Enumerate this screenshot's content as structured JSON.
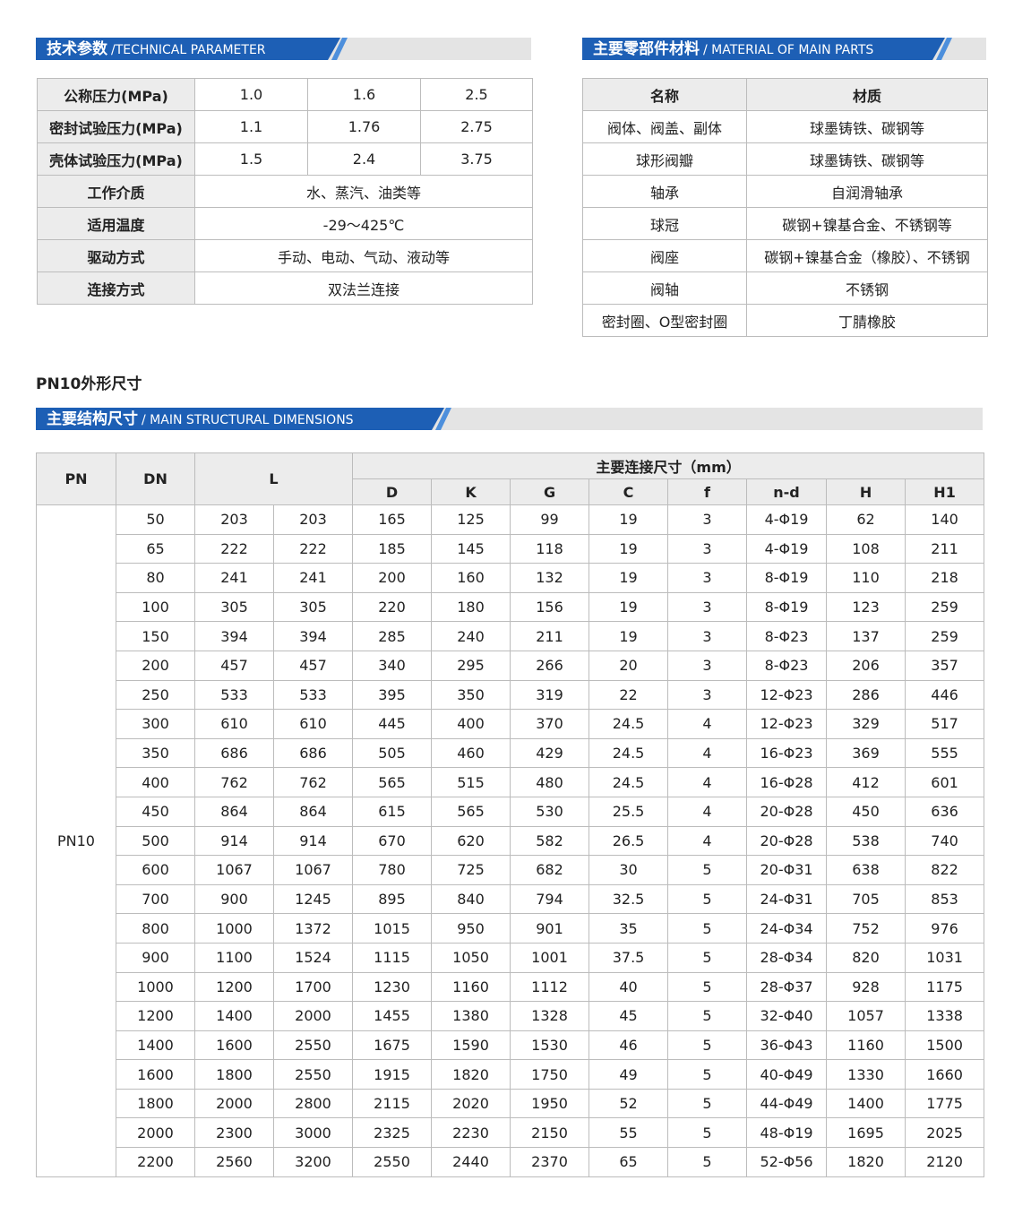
{
  "tech": {
    "title": "技术参数",
    "subtitle": "/TECHNICAL PARAMETER",
    "rows": [
      {
        "label": "公称压力(MPa)",
        "cells": [
          "1.0",
          "1.6",
          "2.5"
        ]
      },
      {
        "label": "密封试验压力(MPa)",
        "cells": [
          "1.1",
          "1.76",
          "2.75"
        ]
      },
      {
        "label": "壳体试验压力(MPa)",
        "cells": [
          "1.5",
          "2.4",
          "3.75"
        ]
      },
      {
        "label": "工作介质",
        "cells": [
          "水、蒸汽、油类等"
        ]
      },
      {
        "label": "适用温度",
        "cells": [
          "-29～425℃"
        ]
      },
      {
        "label": "驱动方式",
        "cells": [
          "手动、电动、气动、液动等"
        ]
      },
      {
        "label": "连接方式",
        "cells": [
          "双法兰连接"
        ]
      }
    ]
  },
  "materials": {
    "title": "主要零部件材料",
    "subtitle": "/ MATERIAL OF MAIN PARTS",
    "header": [
      "名称",
      "材质"
    ],
    "rows": [
      [
        "阀体、阀盖、副体",
        "球墨铸铁、碳钢等"
      ],
      [
        "球形阀瓣",
        "球墨铸铁、碳钢等"
      ],
      [
        "轴承",
        "自润滑轴承"
      ],
      [
        "球冠",
        "碳钢+镍基合金、不锈钢等"
      ],
      [
        "阀座",
        "碳钢+镍基合金（橡胶）、不锈钢"
      ],
      [
        "阀轴",
        "不锈钢"
      ],
      [
        "密封圈、O型密封圈",
        "丁腈橡胶"
      ]
    ]
  },
  "dimensions": {
    "section_title": "PN10外形尺寸",
    "title": "主要结构尺寸",
    "subtitle": "/ MAIN STRUCTURAL DIMENSIONS",
    "header": {
      "pn": "PN",
      "dn": "DN",
      "l": "L",
      "group": "主要连接尺寸（mm）",
      "columns": [
        "D",
        "K",
        "G",
        "C",
        "f",
        "n-d",
        "H",
        "H1"
      ]
    },
    "pn": "PN10",
    "rows": [
      [
        50,
        203,
        203,
        165,
        125,
        99,
        19,
        3,
        "4-Φ19",
        62,
        140
      ],
      [
        65,
        222,
        222,
        185,
        145,
        118,
        19,
        3,
        "4-Φ19",
        108,
        211
      ],
      [
        80,
        241,
        241,
        200,
        160,
        132,
        19,
        3,
        "8-Φ19",
        110,
        218
      ],
      [
        100,
        305,
        305,
        220,
        180,
        156,
        19,
        3,
        "8-Φ19",
        123,
        259
      ],
      [
        150,
        394,
        394,
        285,
        240,
        211,
        19,
        3,
        "8-Φ23",
        137,
        259
      ],
      [
        200,
        457,
        457,
        340,
        295,
        266,
        20,
        3,
        "8-Φ23",
        206,
        357
      ],
      [
        250,
        533,
        533,
        395,
        350,
        319,
        22,
        3,
        "12-Φ23",
        286,
        446
      ],
      [
        300,
        610,
        610,
        445,
        400,
        370,
        24.5,
        4,
        "12-Φ23",
        329,
        517
      ],
      [
        350,
        686,
        686,
        505,
        460,
        429,
        24.5,
        4,
        "16-Φ23",
        369,
        555
      ],
      [
        400,
        762,
        762,
        565,
        515,
        480,
        24.5,
        4,
        "16-Φ28",
        412,
        601
      ],
      [
        450,
        864,
        864,
        615,
        565,
        530,
        25.5,
        4,
        "20-Φ28",
        450,
        636
      ],
      [
        500,
        914,
        914,
        670,
        620,
        582,
        26.5,
        4,
        "20-Φ28",
        538,
        740
      ],
      [
        600,
        1067,
        1067,
        780,
        725,
        682,
        30,
        5,
        "20-Φ31",
        638,
        822
      ],
      [
        700,
        900,
        1245,
        895,
        840,
        794,
        32.5,
        5,
        "24-Φ31",
        705,
        853
      ],
      [
        800,
        1000,
        1372,
        1015,
        950,
        901,
        35,
        5,
        "24-Φ34",
        752,
        976
      ],
      [
        900,
        1100,
        1524,
        1115,
        1050,
        1001,
        37.5,
        5,
        "28-Φ34",
        820,
        1031
      ],
      [
        1000,
        1200,
        1700,
        1230,
        1160,
        1112,
        40,
        5,
        "28-Φ37",
        928,
        1175
      ],
      [
        1200,
        1400,
        2000,
        1455,
        1380,
        1328,
        45,
        5,
        "32-Φ40",
        1057,
        1338
      ],
      [
        1400,
        1600,
        2550,
        1675,
        1590,
        1530,
        46,
        5,
        "36-Φ43",
        1160,
        1500
      ],
      [
        1600,
        1800,
        2550,
        1915,
        1820,
        1750,
        49,
        5,
        "40-Φ49",
        1330,
        1660
      ],
      [
        1800,
        2000,
        2800,
        2115,
        2020,
        1950,
        52,
        5,
        "44-Φ49",
        1400,
        1775
      ],
      [
        2000,
        2300,
        3000,
        2325,
        2230,
        2150,
        55,
        5,
        "48-Φ19",
        1695,
        2025
      ],
      [
        2200,
        2560,
        3200,
        2550,
        2440,
        2370,
        65,
        5,
        "52-Φ56",
        1820,
        2120
      ]
    ]
  }
}
